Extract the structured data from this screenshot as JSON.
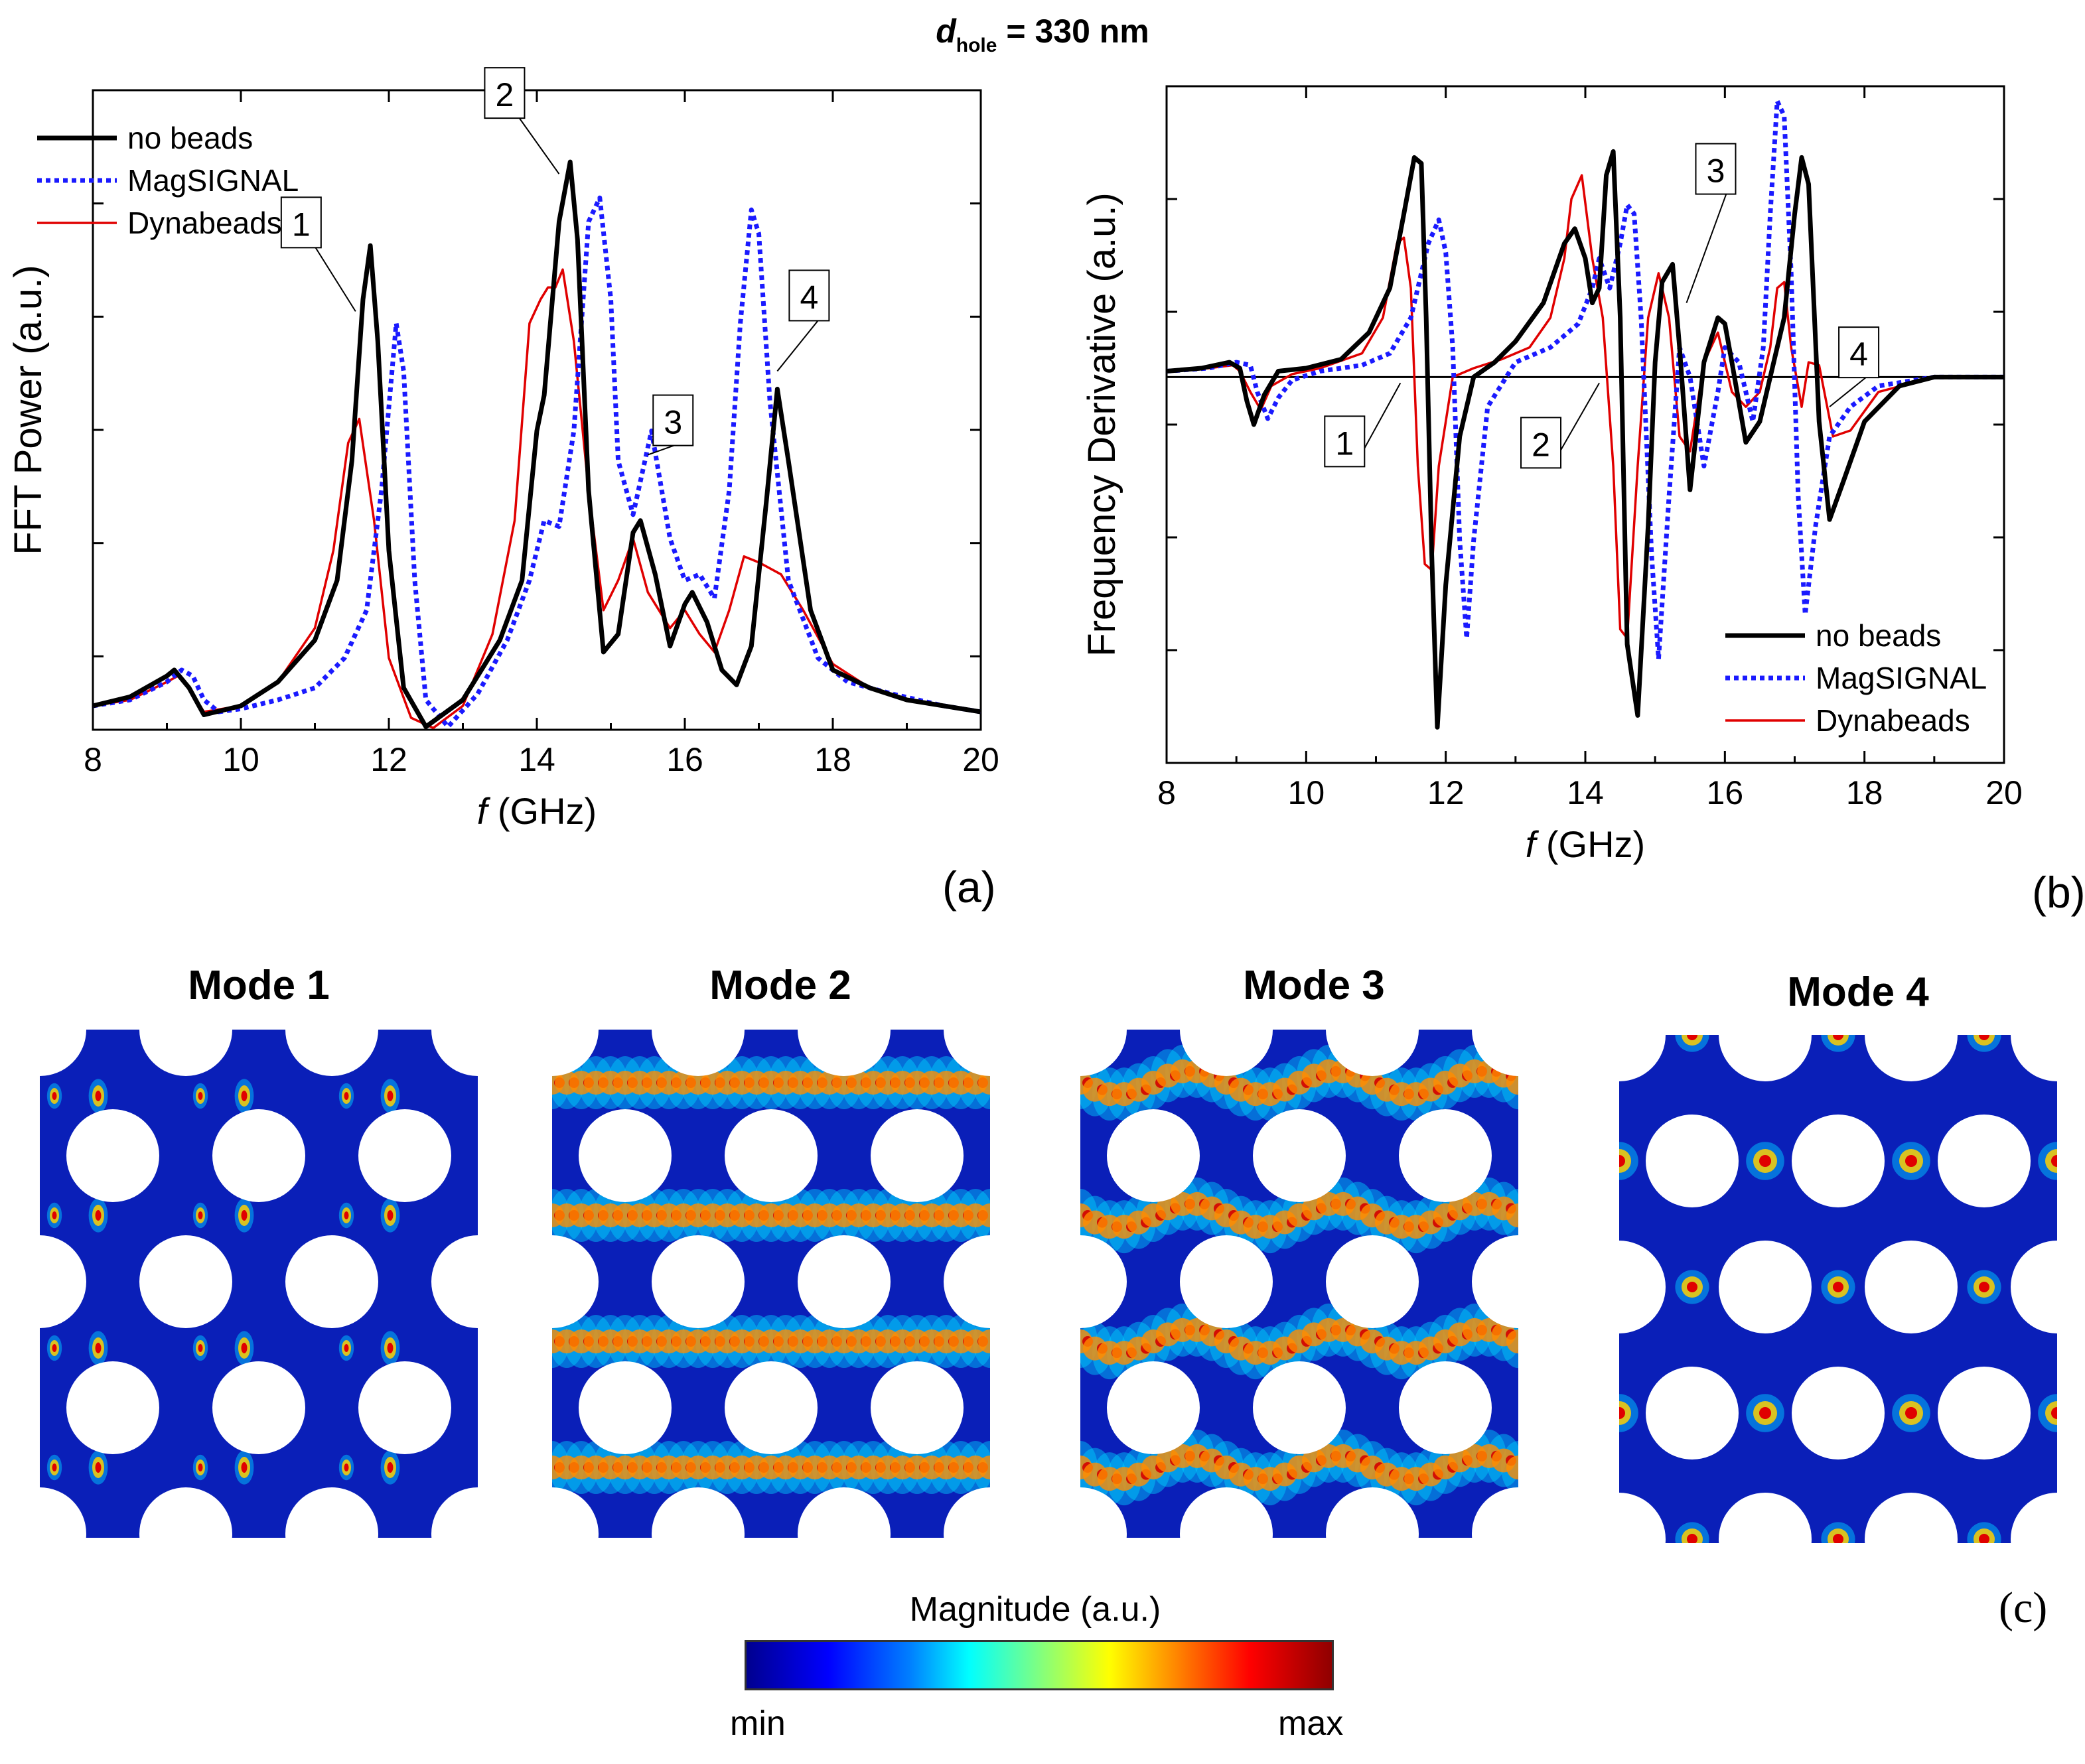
{
  "figure_title": {
    "symbol": "d",
    "subscript": "hole",
    "value": "= 330 nm"
  },
  "colors": {
    "no_beads": "#000000",
    "magsignal": "#1a1aff",
    "dynabeads": "#e00000"
  },
  "chart_data": [
    {
      "panel": "(a)",
      "type": "line",
      "xlabel_italic": "f",
      "xlabel_rest": "(GHz)",
      "ylabel": "FFT Power (a.u.)",
      "xlim": [
        8,
        20
      ],
      "ylim": [
        0,
        1.07
      ],
      "xticks": [
        "8",
        "10",
        "12",
        "14",
        "16",
        "18",
        "20"
      ],
      "legend_position": "top-left",
      "series": [
        {
          "name": "no beads",
          "style": "solid-thick",
          "x": [
            8,
            8.5,
            9.0,
            9.1,
            9.3,
            9.5,
            10,
            10.5,
            11,
            11.3,
            11.5,
            11.65,
            11.75,
            11.85,
            12,
            12.2,
            12.5,
            13,
            13.5,
            13.8,
            14.0,
            14.1,
            14.3,
            14.45,
            14.55,
            14.7,
            14.9,
            15.1,
            15.3,
            15.4,
            15.6,
            15.8,
            16.0,
            16.1,
            16.3,
            16.5,
            16.7,
            16.9,
            17.1,
            17.25,
            17.4,
            17.7,
            18,
            18.5,
            19,
            19.5,
            20
          ],
          "y": [
            0.04,
            0.055,
            0.09,
            0.1,
            0.07,
            0.025,
            0.04,
            0.08,
            0.15,
            0.25,
            0.45,
            0.72,
            0.81,
            0.65,
            0.3,
            0.07,
            0.005,
            0.05,
            0.15,
            0.25,
            0.5,
            0.56,
            0.85,
            0.95,
            0.82,
            0.4,
            0.13,
            0.16,
            0.33,
            0.35,
            0.26,
            0.14,
            0.21,
            0.23,
            0.18,
            0.1,
            0.075,
            0.14,
            0.38,
            0.57,
            0.45,
            0.2,
            0.1,
            0.07,
            0.05,
            0.04,
            0.03
          ]
        },
        {
          "name": "MagSIGNAL",
          "style": "dotted",
          "x": [
            8,
            8.5,
            9.0,
            9.2,
            9.35,
            9.5,
            9.7,
            10,
            10.5,
            11,
            11.4,
            11.7,
            11.9,
            12.1,
            12.2,
            12.35,
            12.5,
            12.8,
            13.2,
            13.6,
            13.9,
            14.1,
            14.3,
            14.5,
            14.7,
            14.85,
            15.0,
            15.1,
            15.3,
            15.55,
            15.8,
            16.0,
            16.2,
            16.4,
            16.6,
            16.75,
            16.9,
            17.0,
            17.15,
            17.4,
            17.8,
            18.2,
            18.8,
            19.5,
            20
          ],
          "y": [
            0.04,
            0.05,
            0.08,
            0.1,
            0.09,
            0.05,
            0.03,
            0.035,
            0.05,
            0.07,
            0.12,
            0.2,
            0.4,
            0.68,
            0.6,
            0.25,
            0.05,
            0.005,
            0.06,
            0.15,
            0.25,
            0.35,
            0.34,
            0.5,
            0.85,
            0.89,
            0.72,
            0.45,
            0.36,
            0.5,
            0.32,
            0.25,
            0.26,
            0.22,
            0.4,
            0.68,
            0.87,
            0.83,
            0.55,
            0.25,
            0.12,
            0.08,
            0.06,
            0.04,
            0.03
          ]
        },
        {
          "name": "Dynabeads",
          "style": "solid-thin",
          "x": [
            8,
            8.5,
            9.0,
            9.15,
            9.3,
            9.5,
            10,
            10.5,
            11,
            11.25,
            11.45,
            11.6,
            11.8,
            12.0,
            12.3,
            12.6,
            13,
            13.4,
            13.7,
            13.9,
            14.05,
            14.15,
            14.25,
            14.35,
            14.5,
            14.7,
            14.9,
            15.1,
            15.3,
            15.5,
            15.8,
            16.0,
            16.2,
            16.4,
            16.6,
            16.8,
            17.0,
            17.3,
            17.6,
            18,
            18.5,
            19,
            20
          ],
          "y": [
            0.04,
            0.05,
            0.08,
            0.09,
            0.07,
            0.03,
            0.04,
            0.08,
            0.17,
            0.3,
            0.48,
            0.52,
            0.35,
            0.12,
            0.02,
            0.003,
            0.04,
            0.16,
            0.35,
            0.68,
            0.72,
            0.74,
            0.74,
            0.77,
            0.65,
            0.4,
            0.2,
            0.25,
            0.32,
            0.23,
            0.17,
            0.2,
            0.16,
            0.13,
            0.2,
            0.29,
            0.28,
            0.26,
            0.2,
            0.11,
            0.07,
            0.05,
            0.03
          ]
        }
      ],
      "annotations": [
        {
          "label": "1",
          "x": 11.55,
          "y": 0.7
        },
        {
          "label": "2",
          "x": 14.3,
          "y": 0.93
        },
        {
          "label": "3",
          "x": 15.5,
          "y": 0.46
        },
        {
          "label": "4",
          "x": 17.25,
          "y": 0.6
        }
      ]
    },
    {
      "panel": "(b)",
      "type": "line",
      "xlabel_italic": "f",
      "xlabel_rest": "(GHz)",
      "ylabel": "Frequency Derivative (a.u.)",
      "xlim": [
        8,
        20
      ],
      "ylim": [
        -1.3,
        0.98
      ],
      "xticks": [
        "8",
        "10",
        "12",
        "14",
        "16",
        "18",
        "20"
      ],
      "legend_position": "bottom-right",
      "series": [
        {
          "name": "no beads",
          "style": "solid-thick",
          "x": [
            8,
            8.5,
            8.9,
            9.05,
            9.15,
            9.25,
            9.4,
            9.6,
            10,
            10.5,
            10.9,
            11.2,
            11.4,
            11.55,
            11.65,
            11.72,
            11.8,
            11.88,
            12.0,
            12.2,
            12.4,
            12.7,
            13.0,
            13.4,
            13.7,
            13.85,
            14.0,
            14.1,
            14.2,
            14.3,
            14.4,
            14.5,
            14.6,
            14.75,
            14.9,
            15.0,
            15.1,
            15.25,
            15.35,
            15.5,
            15.7,
            15.9,
            16.0,
            16.1,
            16.3,
            16.5,
            16.7,
            16.85,
            17.0,
            17.1,
            17.2,
            17.35,
            17.5,
            17.7,
            18.0,
            18.5,
            19,
            20
          ],
          "y": [
            0.02,
            0.03,
            0.05,
            0.03,
            -0.08,
            -0.16,
            -0.06,
            0.02,
            0.03,
            0.06,
            0.15,
            0.3,
            0.55,
            0.74,
            0.72,
            0.2,
            -0.6,
            -1.18,
            -0.7,
            -0.2,
            0.0,
            0.05,
            0.12,
            0.25,
            0.45,
            0.5,
            0.4,
            0.25,
            0.3,
            0.68,
            0.76,
            0.2,
            -0.9,
            -1.14,
            -0.5,
            0.05,
            0.32,
            0.38,
            0.1,
            -0.38,
            0.05,
            0.2,
            0.18,
            0.05,
            -0.22,
            -0.15,
            0.05,
            0.2,
            0.55,
            0.74,
            0.65,
            -0.15,
            -0.48,
            -0.35,
            -0.15,
            -0.03,
            0.0,
            0.0
          ]
        },
        {
          "name": "MagSIGNAL",
          "style": "dotted",
          "x": [
            8,
            8.6,
            9.0,
            9.2,
            9.3,
            9.45,
            9.6,
            9.8,
            10.2,
            10.8,
            11.2,
            11.5,
            11.75,
            11.9,
            12.0,
            12.1,
            12.2,
            12.3,
            12.4,
            12.6,
            13.0,
            13.5,
            13.9,
            14.1,
            14.2,
            14.35,
            14.5,
            14.6,
            14.7,
            14.8,
            14.95,
            15.05,
            15.2,
            15.35,
            15.5,
            15.7,
            15.9,
            16.0,
            16.2,
            16.4,
            16.55,
            16.65,
            16.75,
            16.85,
            16.95,
            17.05,
            17.15,
            17.3,
            17.5,
            17.8,
            18.2,
            19.0,
            20
          ],
          "y": [
            0.02,
            0.03,
            0.05,
            0.04,
            -0.05,
            -0.14,
            -0.07,
            -0.01,
            0.02,
            0.04,
            0.08,
            0.2,
            0.45,
            0.53,
            0.42,
            0.1,
            -0.55,
            -0.88,
            -0.55,
            -0.1,
            0.05,
            0.1,
            0.18,
            0.3,
            0.4,
            0.3,
            0.45,
            0.58,
            0.55,
            0.2,
            -0.6,
            -0.95,
            -0.4,
            0.1,
            0.0,
            -0.3,
            -0.05,
            0.1,
            0.05,
            -0.15,
            0.1,
            0.55,
            0.93,
            0.88,
            0.35,
            -0.4,
            -0.8,
            -0.5,
            -0.2,
            -0.1,
            -0.03,
            0.0,
            0.0
          ]
        },
        {
          "name": "Dynabeads",
          "style": "solid-thin",
          "x": [
            8,
            8.6,
            8.95,
            9.05,
            9.2,
            9.35,
            9.5,
            9.8,
            10.2,
            10.8,
            11.1,
            11.3,
            11.4,
            11.5,
            11.6,
            11.7,
            11.8,
            11.9,
            12.1,
            12.4,
            12.8,
            13.2,
            13.5,
            13.7,
            13.8,
            13.95,
            14.1,
            14.25,
            14.4,
            14.5,
            14.6,
            14.75,
            14.9,
            15.05,
            15.2,
            15.35,
            15.5,
            15.7,
            15.9,
            16.1,
            16.3,
            16.5,
            16.65,
            16.75,
            16.85,
            16.95,
            17.1,
            17.2,
            17.35,
            17.55,
            17.8,
            18.2,
            19.0,
            20
          ],
          "y": [
            0.02,
            0.03,
            0.04,
            0.02,
            -0.05,
            -0.11,
            -0.03,
            0.01,
            0.03,
            0.08,
            0.2,
            0.45,
            0.47,
            0.3,
            -0.3,
            -0.63,
            -0.65,
            -0.3,
            0.0,
            0.03,
            0.06,
            0.1,
            0.2,
            0.4,
            0.6,
            0.68,
            0.4,
            0.2,
            -0.3,
            -0.85,
            -0.88,
            -0.3,
            0.2,
            0.35,
            0.2,
            -0.2,
            -0.25,
            0.05,
            0.15,
            -0.05,
            -0.1,
            -0.05,
            0.1,
            0.3,
            0.32,
            0.1,
            -0.1,
            0.05,
            0.04,
            -0.2,
            -0.18,
            -0.05,
            0.0,
            0.0
          ]
        }
      ],
      "annotations": [
        {
          "label": "1",
          "x": 11.35,
          "y": -0.02
        },
        {
          "label": "2",
          "x": 14.2,
          "y": -0.02
        },
        {
          "label": "3",
          "x": 15.45,
          "y": 0.25
        },
        {
          "label": "4",
          "x": 17.5,
          "y": -0.1
        }
      ]
    }
  ],
  "panel_c": {
    "label": "(c)",
    "modes": [
      {
        "title": "Mode 1",
        "pattern": "dots"
      },
      {
        "title": "Mode 2",
        "pattern": "bands"
      },
      {
        "title": "Mode 3",
        "pattern": "wavy"
      },
      {
        "title": "Mode 4",
        "pattern": "dots-row"
      }
    ],
    "colorbar": {
      "title": "Magnitude (a.u.)",
      "min_label": "min",
      "max_label": "max"
    }
  }
}
